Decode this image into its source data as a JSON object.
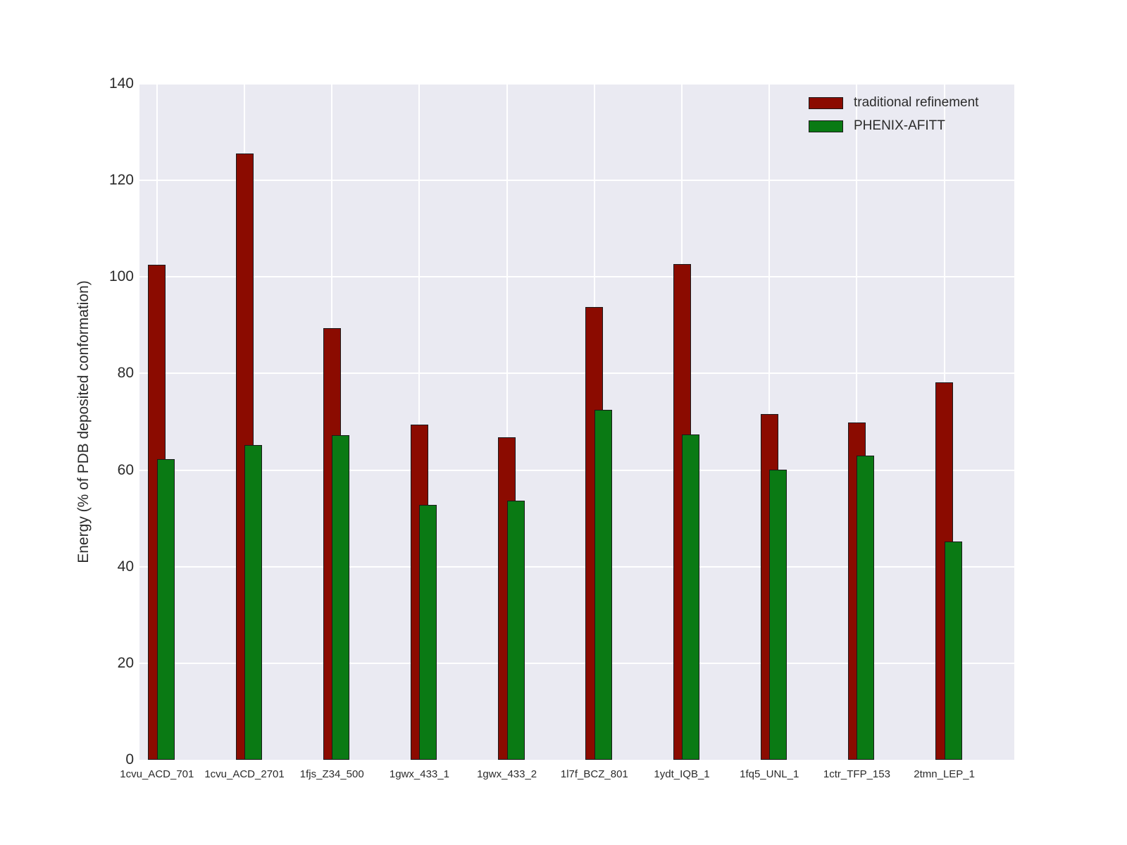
{
  "chart_data": {
    "type": "bar",
    "title": "",
    "xlabel": "",
    "ylabel": "Energy (% of PDB deposited conformation)",
    "categories": [
      "1cvu_ACD_701",
      "1cvu_ACD_2701",
      "1fjs_Z34_500",
      "1gwx_433_1",
      "1gwx_433_2",
      "1l7f_BCZ_801",
      "1ydt_IQB_1",
      "1fq5_UNL_1",
      "1ctr_TFP_153",
      "2tmn_LEP_1"
    ],
    "series": [
      {
        "name": "traditional refinement",
        "color": "#8b0b00",
        "values": [
          102.5,
          125.6,
          89.4,
          69.4,
          66.8,
          93.8,
          102.6,
          71.6,
          69.9,
          78.2
        ]
      },
      {
        "name": "PHENIX-AFITT",
        "color": "#0a7a14",
        "values": [
          62.3,
          65.2,
          67.2,
          52.8,
          53.7,
          72.5,
          67.4,
          60.1,
          63.0,
          45.2
        ]
      }
    ],
    "ylim": [
      0,
      140
    ],
    "yticks": [
      0,
      20,
      40,
      60,
      80,
      100,
      120,
      140
    ],
    "grid": "on",
    "legend_position": "upper right",
    "colors": {
      "axes_background": "#eaeaf2",
      "gridline": "#ffffff",
      "bar_edge": "#1a1a1a",
      "tick_text": "#2b2b2b",
      "figure_background": "#ffffff"
    }
  }
}
